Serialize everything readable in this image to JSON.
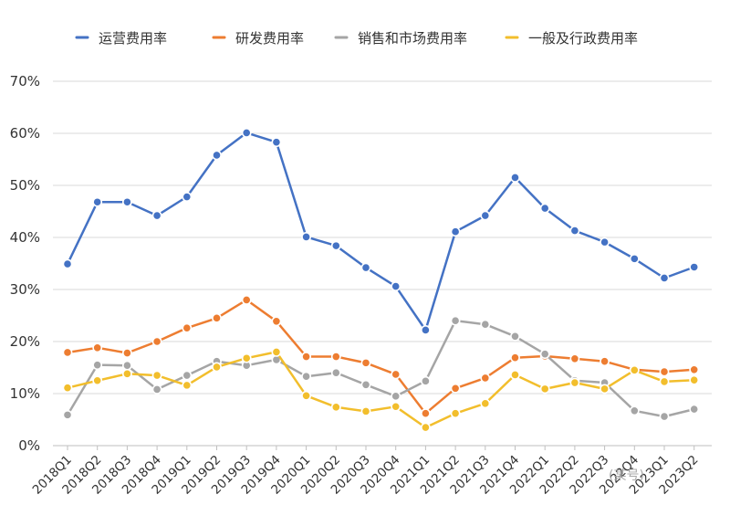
{
  "chart_data": {
    "type": "line",
    "categories": [
      "2018Q1",
      "2018Q2",
      "2018Q3",
      "2018Q4",
      "2019Q1",
      "2019Q2",
      "2019Q3",
      "2019Q4",
      "2020Q1",
      "2020Q2",
      "2020Q3",
      "2020Q4",
      "2021Q1",
      "2021Q2",
      "2021Q3",
      "2021Q4",
      "2022Q1",
      "2022Q2",
      "2022Q3",
      "2022Q4",
      "2023Q1",
      "2023Q2"
    ],
    "series": [
      {
        "name": "运营费用率",
        "color": "#4472C4",
        "values": [
          34.9,
          46.8,
          46.8,
          44.2,
          47.8,
          55.8,
          60.1,
          58.3,
          40.1,
          38.4,
          34.2,
          30.6,
          22.2,
          41.1,
          44.2,
          51.5,
          45.6,
          41.3,
          39.1,
          35.9,
          32.2,
          34.3
        ]
      },
      {
        "name": "研发费用率",
        "color": "#ED7D31",
        "values": [
          17.9,
          18.8,
          17.8,
          20.0,
          22.6,
          24.5,
          28.0,
          23.9,
          17.1,
          17.1,
          15.9,
          13.7,
          6.2,
          11.0,
          13.0,
          16.9,
          17.2,
          16.7,
          16.2,
          14.6,
          14.2,
          14.6
        ]
      },
      {
        "name": "销售和市场费用率",
        "color": "#A5A5A5",
        "values": [
          5.9,
          15.5,
          15.4,
          10.8,
          13.5,
          16.2,
          15.4,
          16.5,
          13.3,
          14.0,
          11.7,
          9.5,
          12.4,
          24.0,
          23.3,
          21.0,
          17.6,
          12.5,
          12.1,
          6.7,
          5.6,
          7.0
        ]
      },
      {
        "name": "一般及行政费用率",
        "color": "#F2BE2C",
        "values": [
          11.1,
          12.5,
          13.8,
          13.5,
          11.6,
          15.1,
          16.8,
          18.0,
          9.6,
          7.4,
          6.6,
          7.5,
          3.5,
          6.2,
          8.1,
          13.6,
          10.9,
          12.1,
          10.9,
          14.5,
          12.3,
          12.6
        ]
      }
    ],
    "yticks": [
      "0%",
      "10%",
      "20%",
      "30%",
      "40%",
      "50%",
      "60%",
      "70%"
    ],
    "ylim": [
      0,
      70
    ],
    "grid": true,
    "legend_position": "top"
  },
  "watermark": "(某号)"
}
